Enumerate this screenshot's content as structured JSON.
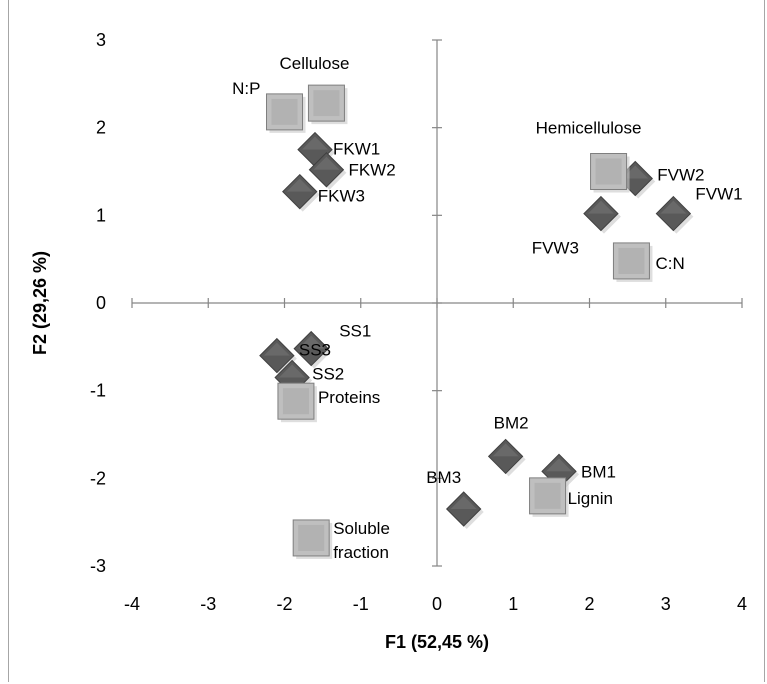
{
  "chart_data": {
    "type": "scatter",
    "title": "",
    "xlabel": "F1 (52,45 %)",
    "ylabel": "F2 (29,26 %)",
    "xlim": [
      -4,
      4
    ],
    "ylim": [
      -3,
      3
    ],
    "x_ticks": [
      "-4",
      "-3",
      "-2",
      "-1",
      "0",
      "1",
      "2",
      "3",
      "4"
    ],
    "y_ticks": [
      "-3",
      "-2",
      "-1",
      "0",
      "1",
      "2",
      "3"
    ],
    "grid": false,
    "colors": {
      "observation": "#595959",
      "variable": "#bfbfbf"
    },
    "series": [
      {
        "marker": "diamond",
        "points": [
          {
            "label": "FKW1",
            "x": -1.6,
            "y": 1.75
          },
          {
            "label": "FKW2",
            "x": -1.45,
            "y": 1.52
          },
          {
            "label": "FKW3",
            "x": -1.8,
            "y": 1.27
          },
          {
            "label": "FVW2",
            "x": 2.6,
            "y": 1.42
          },
          {
            "label": "FVW1",
            "x": 3.1,
            "y": 1.02
          },
          {
            "label": "FVW3",
            "x": 2.15,
            "y": 1.02
          },
          {
            "label": "SS1",
            "x": -1.65,
            "y": -0.52
          },
          {
            "label": "SS3",
            "x": -2.1,
            "y": -0.6
          },
          {
            "label": "SS2",
            "x": -1.9,
            "y": -0.85
          },
          {
            "label": "BM2",
            "x": 0.9,
            "y": -1.75
          },
          {
            "label": "BM1",
            "x": 1.6,
            "y": -1.92
          },
          {
            "label": "BM3",
            "x": 0.35,
            "y": -2.35
          }
        ]
      },
      {
        "marker": "square",
        "points": [
          {
            "label": "Cellulose",
            "x": -1.45,
            "y": 2.28
          },
          {
            "label": "N:P",
            "x": -2.0,
            "y": 2.18
          },
          {
            "label": "Hemicellulose",
            "x": 2.25,
            "y": 1.5
          },
          {
            "label": "C:N",
            "x": 2.55,
            "y": 0.48
          },
          {
            "label": "Proteins",
            "x": -1.85,
            "y": -1.12
          },
          {
            "label": "Lignin",
            "x": 1.45,
            "y": -2.2
          },
          {
            "label": "Soluble fraction",
            "x": -1.65,
            "y": -2.68
          }
        ]
      }
    ]
  }
}
